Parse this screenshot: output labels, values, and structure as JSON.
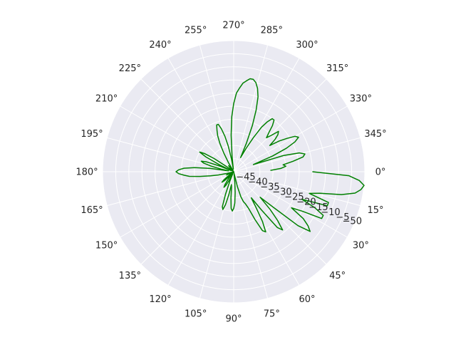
{
  "chart_data": {
    "type": "line",
    "projection": "polar",
    "title": "",
    "theta_direction": "clockwise",
    "theta_zero_location": "right",
    "angle_ticks": [
      "0°",
      "15°",
      "30°",
      "45°",
      "60°",
      "75°",
      "90°",
      "105°",
      "120°",
      "135°",
      "150°",
      "165°",
      "180°",
      "195°",
      "210°",
      "225°",
      "240°",
      "255°",
      "270°",
      "285°",
      "300°",
      "315°",
      "330°",
      "345°"
    ],
    "radial_ticks": [
      "−50",
      "−45",
      "−40",
      "−35",
      "−30",
      "−25",
      "−20",
      "−15",
      "−10",
      "−5",
      "0"
    ],
    "radial_tick_values": [
      -50,
      -45,
      -40,
      -35,
      -30,
      -25,
      -20,
      -15,
      -10,
      -5,
      0
    ],
    "rlim": [
      -50,
      0
    ],
    "radial_label_angle_deg": 22.5,
    "grid": true,
    "background": "#eaeaf2",
    "grid_color": "#ffffff",
    "label_color": "#262626",
    "series": [
      {
        "color": "#008000",
        "theta_deg": [
          0,
          2,
          4,
          6,
          8,
          10,
          12,
          14,
          16,
          18,
          20,
          22,
          24,
          26,
          28,
          30,
          32,
          34,
          36,
          38,
          40,
          42,
          44,
          46,
          48,
          50,
          52,
          54,
          56,
          58,
          60,
          62,
          64,
          66,
          68,
          70,
          72,
          74,
          76,
          78,
          80,
          82,
          84,
          86,
          88,
          90,
          92,
          94,
          96,
          98,
          100,
          102,
          104,
          106,
          108,
          110,
          112,
          114,
          116,
          118,
          120,
          122,
          124,
          126,
          128,
          130,
          132,
          134,
          136,
          138,
          140,
          142,
          144,
          146,
          148,
          150,
          152,
          154,
          156,
          158,
          160,
          162,
          164,
          166,
          168,
          170,
          172,
          174,
          176,
          178,
          180,
          182,
          184,
          186,
          188,
          190,
          192,
          194,
          196,
          198,
          200,
          202,
          204,
          206,
          208,
          210,
          212,
          214,
          216,
          218,
          220,
          222,
          224,
          226,
          228,
          230,
          232,
          234,
          236,
          238,
          240,
          242,
          244,
          246,
          248,
          250,
          252,
          254,
          256,
          258,
          260,
          262,
          264,
          266,
          268,
          270,
          272,
          274,
          276,
          278,
          280,
          282,
          284,
          286,
          288,
          290,
          292,
          294,
          296,
          298,
          300,
          302,
          304,
          306,
          308,
          310,
          312,
          314,
          316,
          318,
          320,
          322,
          324,
          326,
          328,
          330,
          332,
          334,
          336,
          338,
          340,
          342,
          344,
          346,
          348,
          350,
          352,
          354,
          356,
          358
        ],
        "r": [
          -20,
          -6,
          -2,
          0,
          -1,
          -3,
          -8,
          -16,
          -20,
          -12,
          -12,
          -22,
          -16,
          -12,
          -12,
          -20,
          -24,
          -18,
          -15,
          -13,
          -18,
          -30,
          -36,
          -30,
          -25,
          -21,
          -23,
          -32,
          -38,
          -34,
          -28,
          -24,
          -25,
          -30,
          -35,
          -37,
          -38,
          -40,
          -44,
          -49,
          -50,
          -49,
          -46,
          -42,
          -38,
          -36,
          -35,
          -36,
          -40,
          -44,
          -45,
          -41,
          -37,
          -35,
          -36,
          -41,
          -46,
          -49,
          -48,
          -46,
          -44,
          -43,
          -44,
          -46,
          -48,
          -50,
          -49,
          -47,
          -45,
          -44,
          -45,
          -47,
          -49,
          -50,
          -50,
          -50,
          -50,
          -48,
          -47,
          -48,
          -50,
          -50,
          -49,
          -47,
          -44,
          -41,
          -37,
          -33,
          -31,
          -29,
          -28,
          -29,
          -31,
          -35,
          -41,
          -48,
          -45,
          -41,
          -38,
          -37,
          -39,
          -44,
          -49,
          -44,
          -38,
          -35,
          -37,
          -41,
          -47,
          -50,
          -50,
          -50,
          -50,
          -50,
          -48,
          -47,
          -48,
          -50,
          -50,
          -50,
          -46,
          -42,
          -38,
          -35,
          -33,
          -31,
          -31,
          -33,
          -36,
          -40,
          -45,
          -49,
          -44,
          -36,
          -29,
          -24,
          -20,
          -18,
          -16,
          -15,
          -14,
          -14,
          -15,
          -17,
          -20,
          -25,
          -31,
          -38,
          -44,
          -40,
          -35,
          -30,
          -27,
          -25,
          -25,
          -27,
          -30,
          -32,
          -30,
          -27,
          -28,
          -30,
          -33,
          -29,
          -26,
          -23,
          -22,
          -24,
          -28,
          -34,
          -42,
          -30,
          -24,
          -22,
          -23,
          -27,
          -31,
          -30,
          -32,
          -36
        ]
      }
    ]
  }
}
